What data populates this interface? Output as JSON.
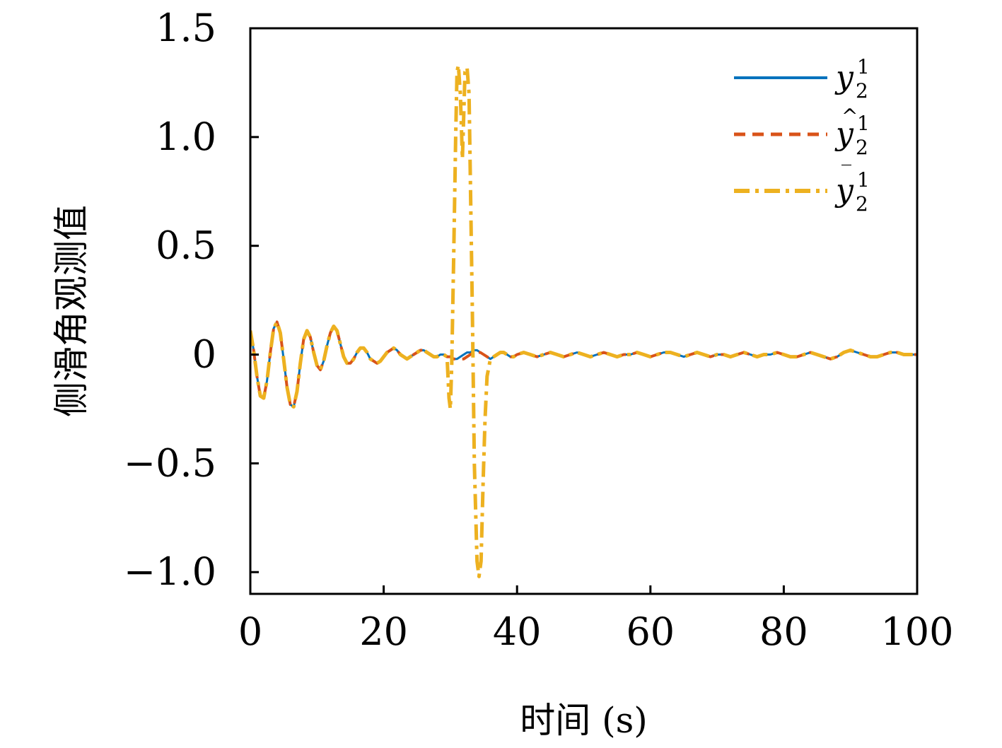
{
  "chart_data": {
    "type": "line",
    "xlabel": "时间 (s)",
    "ylabel": "侧滑角观测值",
    "xlim": [
      0,
      100
    ],
    "ylim": [
      -1.1,
      1.5
    ],
    "xticks": [
      0,
      20,
      40,
      60,
      80,
      100
    ],
    "xtick_labels": [
      "0",
      "20",
      "40",
      "60",
      "80",
      "100"
    ],
    "yticks": [
      1.5,
      1.0,
      0.5,
      0,
      -0.5,
      -1.0
    ],
    "ytick_labels": [
      "1.5",
      "1.0",
      "0.5",
      "0",
      "−0.5",
      "−1.0"
    ],
    "grid": false,
    "legend_position": "top-right",
    "series": [
      {
        "name": "y_2^1",
        "legend_label": "y",
        "legend_accent": "",
        "legend_sup": "1",
        "legend_sub": "2",
        "color": "#0072BD",
        "style": "solid",
        "x": [
          0,
          0.5,
          1,
          1.5,
          2,
          2.5,
          3,
          3.5,
          4,
          4.5,
          5,
          5.5,
          6,
          6.5,
          7,
          7.5,
          8,
          8.5,
          9,
          9.5,
          10,
          10.5,
          11,
          11.5,
          12,
          12.5,
          13,
          13.5,
          14,
          14.5,
          15,
          15.5,
          16,
          16.5,
          17,
          17.5,
          18,
          18.5,
          19,
          19.5,
          20,
          20.5,
          21,
          21.5,
          22,
          22.5,
          23,
          23.5,
          24,
          24.5,
          25,
          25.5,
          26,
          26.5,
          27,
          27.5,
          28,
          28.5,
          29,
          29.5,
          30,
          30.5,
          31,
          31.5,
          32,
          32.5,
          33,
          33.5,
          34,
          34.5,
          35,
          35.5,
          36,
          36.5,
          37,
          37.5,
          38,
          38.5,
          39,
          39.5,
          40,
          41,
          42,
          43,
          44,
          45,
          46,
          47,
          48,
          49,
          50,
          51,
          52,
          53,
          54,
          55,
          56,
          57,
          58,
          59,
          60,
          61,
          62,
          63,
          64,
          65,
          66,
          67,
          68,
          69,
          70,
          71,
          72,
          73,
          74,
          75,
          76,
          77,
          78,
          79,
          80,
          81,
          82,
          83,
          84,
          85,
          86,
          87,
          88,
          89,
          90,
          91,
          92,
          93,
          94,
          95,
          96,
          97,
          98,
          99,
          100
        ],
        "y": [
          0.11,
          0.02,
          -0.1,
          -0.19,
          -0.2,
          -0.12,
          0.01,
          0.12,
          0.15,
          0.1,
          -0.02,
          -0.15,
          -0.23,
          -0.24,
          -0.17,
          -0.04,
          0.07,
          0.11,
          0.08,
          0.01,
          -0.05,
          -0.07,
          -0.03,
          0.04,
          0.1,
          0.13,
          0.11,
          0.05,
          -0.01,
          -0.04,
          -0.04,
          -0.02,
          0.01,
          0.03,
          0.03,
          0.01,
          -0.02,
          -0.03,
          -0.04,
          -0.03,
          -0.01,
          0.01,
          0.02,
          0.03,
          0.02,
          0.0,
          -0.01,
          -0.02,
          -0.01,
          0.0,
          0.01,
          0.02,
          0.02,
          0.01,
          0.0,
          -0.01,
          -0.01,
          0.0,
          0.0,
          -0.01,
          -0.01,
          -0.02,
          -0.02,
          -0.01,
          0.0,
          0.01,
          0.01,
          0.02,
          0.02,
          0.01,
          0.0,
          -0.01,
          -0.02,
          -0.01,
          0.0,
          0.01,
          0.01,
          0.0,
          -0.01,
          -0.01,
          0.0,
          0.01,
          0.0,
          -0.01,
          0.0,
          0.01,
          0.0,
          -0.01,
          0.0,
          0.01,
          0.0,
          -0.01,
          0.0,
          0.01,
          0.0,
          -0.01,
          0.0,
          0.0,
          0.01,
          0.0,
          -0.01,
          0.0,
          0.01,
          0.01,
          0.0,
          -0.01,
          0.0,
          0.01,
          0.0,
          -0.01,
          0.0,
          0.0,
          -0.01,
          0.0,
          0.01,
          0.0,
          -0.01,
          0.0,
          0.0,
          0.01,
          0.0,
          -0.01,
          -0.01,
          0.0,
          0.01,
          0.0,
          -0.01,
          -0.02,
          -0.01,
          0.01,
          0.02,
          0.01,
          0.0,
          -0.01,
          -0.01,
          0.0,
          0.01,
          0.01,
          0.0,
          0.0,
          0.0
        ],
        "linewidth": 3
      },
      {
        "name": "ŷ_2^1",
        "legend_label": "y",
        "legend_accent": "^",
        "legend_sup": "1",
        "legend_sub": "2",
        "color": "#D95319",
        "style": "dashed",
        "x": [
          0,
          0.5,
          1,
          1.5,
          2,
          2.5,
          3,
          3.5,
          4,
          4.5,
          5,
          5.5,
          6,
          6.5,
          7,
          7.5,
          8,
          8.5,
          9,
          9.5,
          10,
          10.5,
          11,
          11.5,
          12,
          12.5,
          13,
          13.5,
          14,
          14.5,
          15,
          15.5,
          16,
          16.5,
          17,
          17.5,
          18,
          18.5,
          19,
          19.5,
          20,
          20.5,
          21,
          21.5,
          22,
          22.5,
          23,
          23.5,
          24,
          24.5,
          25,
          25.5,
          26,
          26.5,
          27,
          27.5,
          28,
          28.5,
          29,
          29.5,
          30,
          30.5,
          31,
          31.5,
          32,
          32.5,
          33,
          33.5,
          34,
          34.5,
          35,
          35.5,
          36,
          36.5,
          37,
          37.5,
          38,
          38.5,
          39,
          39.5,
          40,
          41,
          42,
          43,
          44,
          45,
          46,
          47,
          48,
          49,
          50,
          51,
          52,
          53,
          54,
          55,
          56,
          57,
          58,
          59,
          60,
          61,
          62,
          63,
          64,
          65,
          66,
          67,
          68,
          69,
          70,
          71,
          72,
          73,
          74,
          75,
          76,
          77,
          78,
          79,
          80,
          81,
          82,
          83,
          84,
          85,
          86,
          87,
          88,
          89,
          90,
          91,
          92,
          93,
          94,
          95,
          96,
          97,
          98,
          99,
          100
        ],
        "y": [
          0.11,
          0.02,
          -0.1,
          -0.19,
          -0.2,
          -0.12,
          0.01,
          0.12,
          0.15,
          0.1,
          -0.02,
          -0.15,
          -0.23,
          -0.24,
          -0.17,
          -0.04,
          0.07,
          0.11,
          0.08,
          0.01,
          -0.05,
          -0.07,
          -0.03,
          0.04,
          0.1,
          0.13,
          0.11,
          0.05,
          -0.01,
          -0.04,
          -0.04,
          -0.02,
          0.01,
          0.03,
          0.03,
          0.01,
          -0.02,
          -0.03,
          -0.04,
          -0.03,
          -0.01,
          0.01,
          0.02,
          0.03,
          0.02,
          0.0,
          -0.01,
          -0.02,
          -0.01,
          0.0,
          0.01,
          0.02,
          0.02,
          0.01,
          0.0,
          -0.01,
          -0.01,
          0.0,
          0.0,
          -0.01,
          -0.01,
          -0.02,
          -0.02,
          -0.02,
          -0.02,
          -0.01,
          0.0,
          0.01,
          0.01,
          0.01,
          0.0,
          -0.01,
          -0.02,
          -0.01,
          0.0,
          0.01,
          0.01,
          0.0,
          -0.01,
          -0.01,
          0.0,
          0.01,
          0.0,
          -0.01,
          0.0,
          0.01,
          0.0,
          -0.01,
          0.0,
          0.01,
          0.0,
          -0.01,
          0.0,
          0.01,
          0.0,
          -0.01,
          0.0,
          0.0,
          0.01,
          0.0,
          -0.01,
          0.0,
          0.01,
          0.01,
          0.0,
          -0.01,
          0.0,
          0.01,
          0.0,
          -0.01,
          0.0,
          0.0,
          -0.01,
          0.0,
          0.01,
          0.0,
          -0.01,
          0.0,
          0.0,
          0.01,
          0.0,
          -0.01,
          -0.01,
          0.0,
          0.01,
          0.0,
          -0.01,
          -0.02,
          -0.01,
          0.01,
          0.02,
          0.01,
          0.0,
          -0.01,
          -0.01,
          0.0,
          0.01,
          0.01,
          0.0,
          0.0,
          0.0
        ],
        "linewidth": 4
      },
      {
        "name": "ȳ_2^1",
        "legend_label": "y",
        "legend_accent": "‾",
        "legend_sup": "1",
        "legend_sub": "2",
        "color": "#EDB120",
        "style": "dashdot",
        "x": [
          0,
          0.5,
          1,
          1.5,
          2,
          2.5,
          3,
          3.5,
          4,
          4.5,
          5,
          5.5,
          6,
          6.5,
          7,
          7.5,
          8,
          8.5,
          9,
          9.5,
          10,
          10.5,
          11,
          11.5,
          12,
          12.5,
          13,
          13.5,
          14,
          14.5,
          15,
          15.5,
          16,
          16.5,
          17,
          17.5,
          18,
          18.5,
          19,
          19.5,
          20,
          20.5,
          21,
          21.5,
          22,
          22.5,
          23,
          23.5,
          24,
          24.5,
          25,
          25.5,
          26,
          26.5,
          27,
          27.5,
          28,
          28.5,
          29,
          29.5,
          29.8,
          30.0,
          30.2,
          30.5,
          30.8,
          31.0,
          31.2,
          31.5,
          31.8,
          32.0,
          32.2,
          32.5,
          32.8,
          33.0,
          33.3,
          33.6,
          34.0,
          34.3,
          34.6,
          34.9,
          35.2,
          35.5,
          36,
          36.5,
          37,
          37.5,
          38,
          38.5,
          39,
          39.5,
          40,
          41,
          42,
          43,
          44,
          45,
          46,
          47,
          48,
          49,
          50,
          51,
          52,
          53,
          54,
          55,
          56,
          57,
          58,
          59,
          60,
          61,
          62,
          63,
          64,
          65,
          66,
          67,
          68,
          69,
          70,
          71,
          72,
          73,
          74,
          75,
          76,
          77,
          78,
          79,
          80,
          81,
          82,
          83,
          84,
          85,
          86,
          87,
          88,
          89,
          90,
          91,
          92,
          93,
          94,
          95,
          96,
          97,
          98,
          99,
          100
        ],
        "y": [
          0.11,
          0.02,
          -0.1,
          -0.19,
          -0.2,
          -0.12,
          0.01,
          0.12,
          0.15,
          0.1,
          -0.02,
          -0.15,
          -0.23,
          -0.24,
          -0.17,
          -0.04,
          0.07,
          0.11,
          0.08,
          0.01,
          -0.05,
          -0.07,
          -0.03,
          0.04,
          0.1,
          0.13,
          0.11,
          0.05,
          -0.01,
          -0.04,
          -0.04,
          -0.02,
          0.01,
          0.03,
          0.03,
          0.01,
          -0.02,
          -0.03,
          -0.04,
          -0.03,
          -0.01,
          0.01,
          0.02,
          0.03,
          0.02,
          0.0,
          -0.01,
          -0.02,
          -0.01,
          0.0,
          0.01,
          0.02,
          0.02,
          0.01,
          0.0,
          -0.01,
          -0.01,
          0.0,
          0.0,
          -0.01,
          -0.2,
          -0.25,
          -0.05,
          0.45,
          1.0,
          1.3,
          1.33,
          1.2,
          0.9,
          1.1,
          1.3,
          1.32,
          1.2,
          0.8,
          0.2,
          -0.5,
          -0.95,
          -1.02,
          -0.95,
          -0.6,
          -0.3,
          -0.1,
          -0.02,
          -0.01,
          0.0,
          0.01,
          0.01,
          0.0,
          -0.01,
          -0.01,
          0.0,
          0.01,
          0.0,
          -0.01,
          0.0,
          0.01,
          0.0,
          -0.01,
          0.0,
          0.01,
          0.0,
          -0.01,
          0.0,
          0.01,
          0.0,
          -0.01,
          0.0,
          0.0,
          0.01,
          0.0,
          -0.01,
          0.0,
          0.01,
          0.01,
          0.0,
          -0.01,
          0.0,
          0.01,
          0.0,
          -0.01,
          0.0,
          0.0,
          -0.01,
          0.0,
          0.01,
          0.0,
          -0.01,
          0.0,
          0.0,
          0.01,
          0.0,
          -0.01,
          -0.01,
          0.0,
          0.01,
          0.0,
          -0.01,
          -0.02,
          -0.01,
          0.01,
          0.02,
          0.01,
          0.0,
          -0.01,
          -0.01,
          0.0,
          0.01,
          0.01,
          0.0,
          0.0,
          0.0
        ],
        "linewidth": 5
      }
    ]
  }
}
